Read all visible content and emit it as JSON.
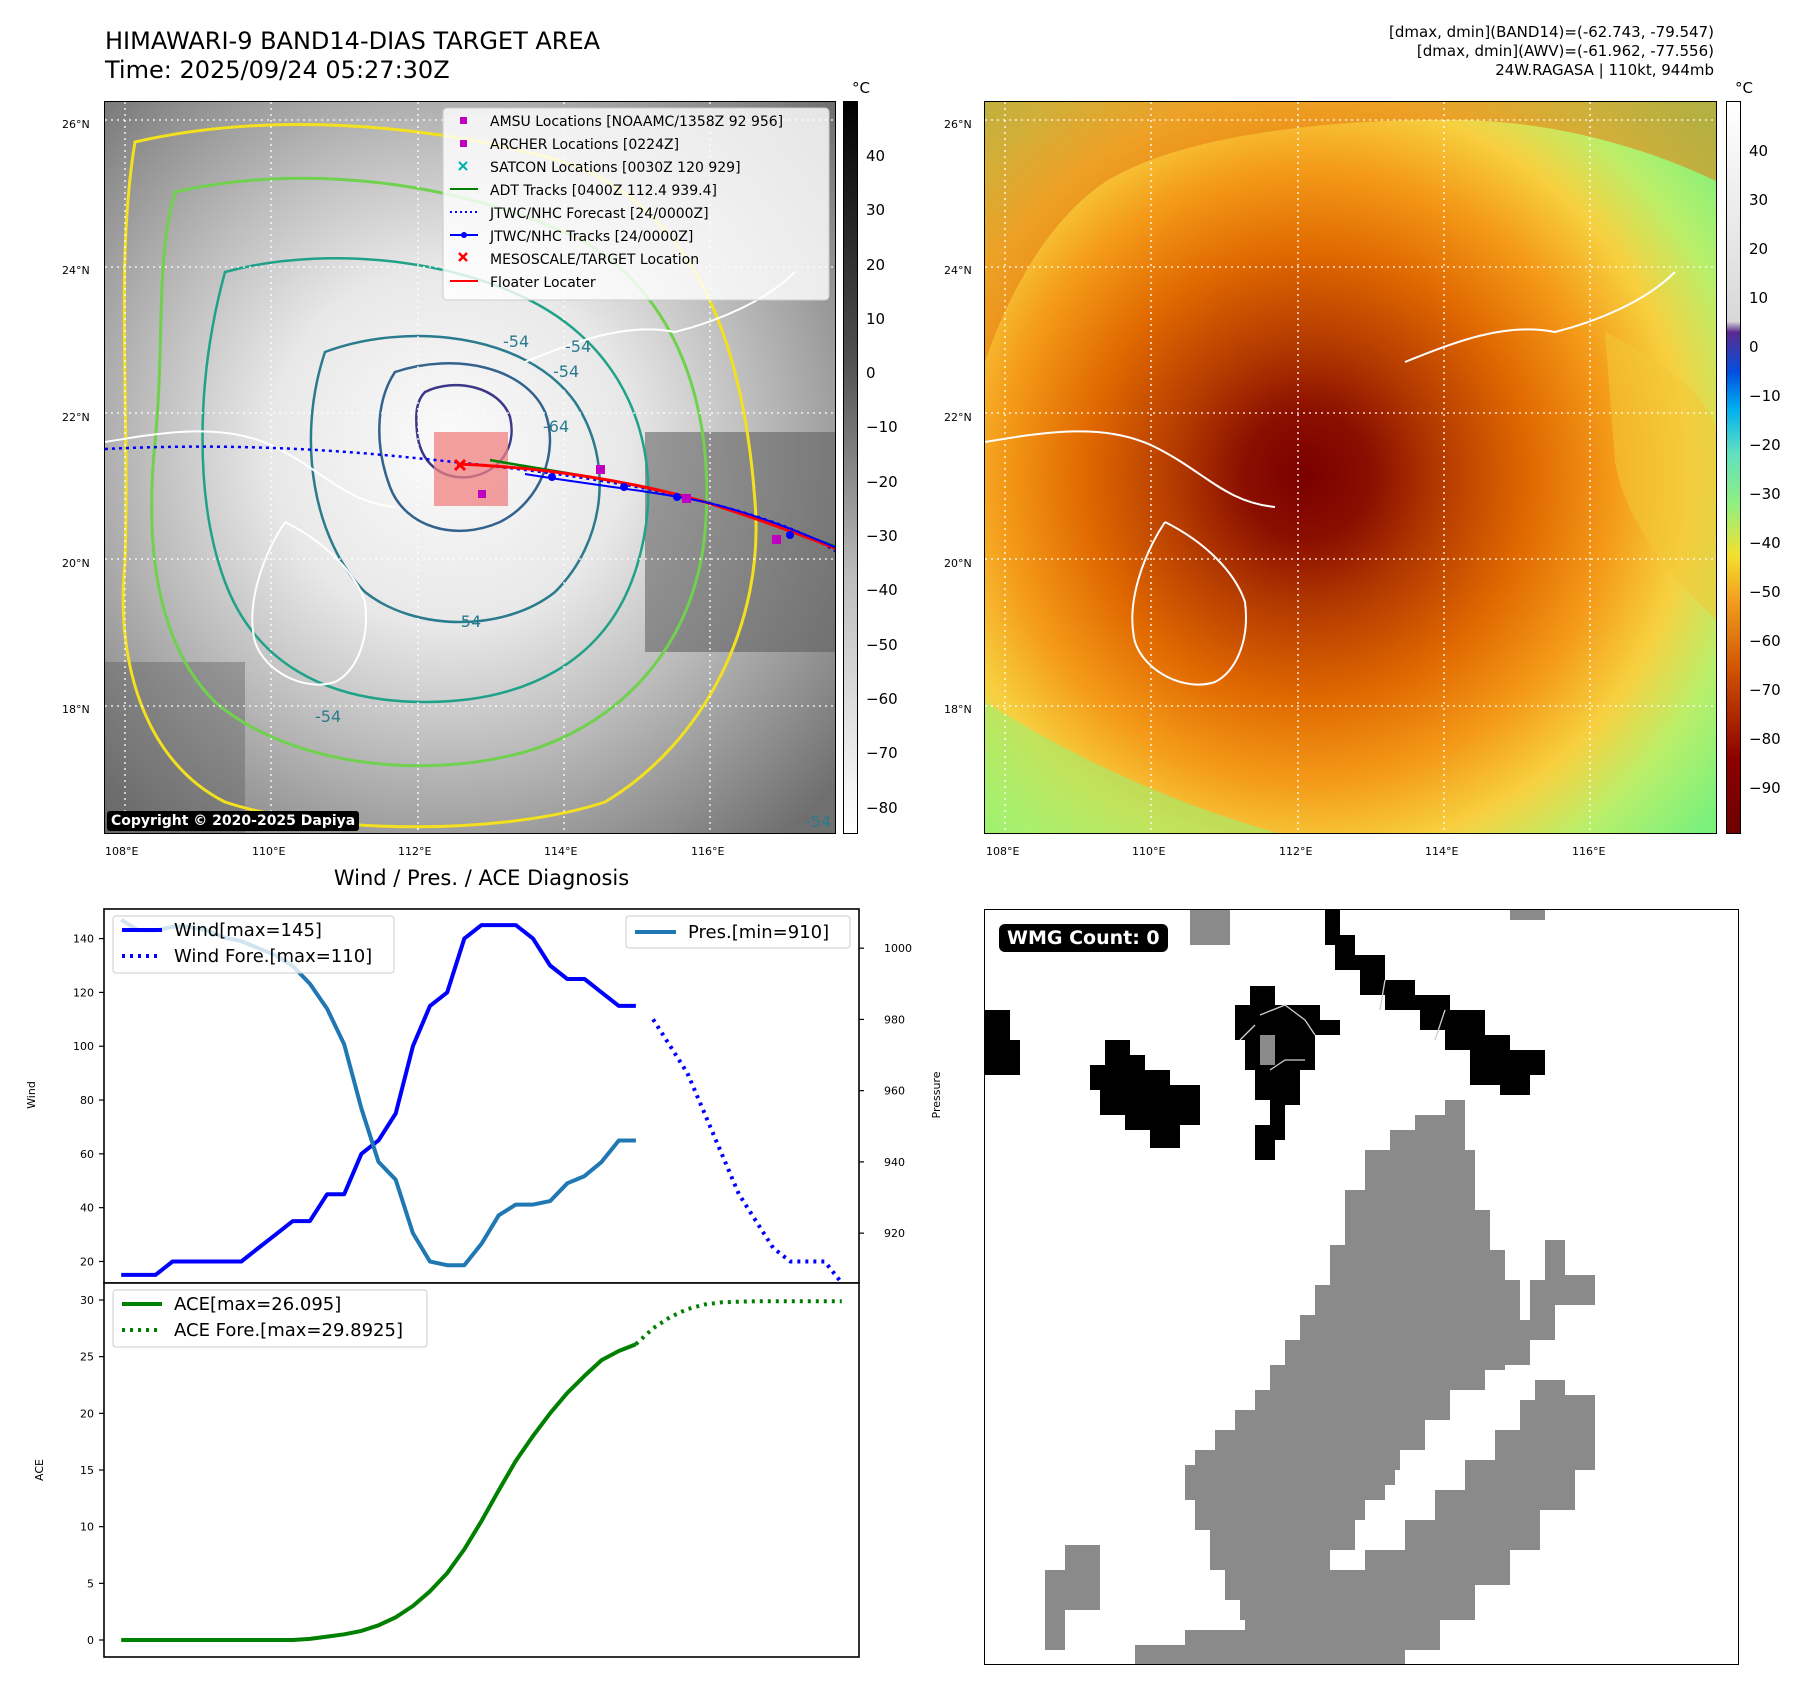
{
  "header": {
    "title_line1": "HIMAWARI-9 BAND14-DIAS TARGET AREA",
    "title_line2": "Time: 2025/09/24 05:27:30Z",
    "info_line1": "[dmax, dmin](BAND14)=(-62.743, -79.547)",
    "info_line2": "[dmax, dmin](AWV)=(-61.962, -77.556)",
    "info_line3": "24W.RAGASA | 110kt, 944mb"
  },
  "map_axes": {
    "lat_labels": [
      "26°N",
      "24°N",
      "22°N",
      "20°N",
      "18°N"
    ],
    "lon_labels": [
      "108°E",
      "110°E",
      "112°E",
      "114°E",
      "116°E"
    ]
  },
  "left_map": {
    "copyright": "Copyright © 2020-2025 Dapiya",
    "contour_labels": [
      "-54",
      "-54",
      "-54",
      "-64",
      "-54",
      "-54",
      "-54"
    ],
    "legend": [
      {
        "label": "AMSU Locations [NOAAMC/1358Z 92 956]",
        "marker": "square",
        "color": "#c000c0"
      },
      {
        "label": "ARCHER Locations [0224Z]",
        "marker": "square",
        "color": "#c000c0"
      },
      {
        "label": "SATCON Locations [0030Z 120 929]",
        "marker": "x",
        "color": "#00b0b0"
      },
      {
        "label": "ADT Tracks [0400Z 112.4 939.4]",
        "marker": "line",
        "color": "#008000"
      },
      {
        "label": "JTWC/NHC Forecast [24/0000Z]",
        "marker": "dotted",
        "color": "#0000ff"
      },
      {
        "label": "JTWC/NHC Tracks [24/0000Z]",
        "marker": "line-dot",
        "color": "#0000ff"
      },
      {
        "label": "MESOSCALE/TARGET Location",
        "marker": "x",
        "color": "#ff0000"
      },
      {
        "label": "Floater Locater",
        "marker": "line",
        "color": "#ff0000"
      }
    ],
    "colorbar": {
      "unit": "°C",
      "ticks": [
        "40",
        "30",
        "20",
        "10",
        "0",
        "−10",
        "−20",
        "−30",
        "−40",
        "−50",
        "−60",
        "−70",
        "−80"
      ],
      "range": [
        -85,
        50
      ]
    }
  },
  "right_map": {
    "colorbar": {
      "unit": "°C",
      "ticks": [
        "40",
        "30",
        "20",
        "10",
        "0",
        "−10",
        "−20",
        "−30",
        "−40",
        "−50",
        "−60",
        "−70",
        "−80",
        "−90"
      ],
      "range": [
        -100,
        50
      ]
    }
  },
  "diagnosis": {
    "title": "Wind / Pres. / ACE Diagnosis",
    "wind_ylabel": "Wind",
    "pres_ylabel": "Pressure",
    "ace_ylabel": "ACE",
    "wind_ticks": [
      "140",
      "120",
      "100",
      "80",
      "60",
      "40",
      "20"
    ],
    "pres_ticks": [
      "1000",
      "980",
      "960",
      "940",
      "920"
    ],
    "ace_ticks": [
      "30",
      "25",
      "20",
      "15",
      "10",
      "5",
      "0"
    ],
    "legend_wind": "Wind[max=145]",
    "legend_wind_fore": "Wind Fore.[max=110]",
    "legend_pres": "Pres.[min=910]",
    "legend_ace": "ACE[max=26.095]",
    "legend_ace_fore": "ACE Fore.[max=29.8925]"
  },
  "wmg": {
    "label": "WMG Count: 0"
  },
  "chart_data": [
    {
      "type": "line",
      "title": "Wind / Pres. / ACE Diagnosis",
      "ylabel": "Wind",
      "ylim": [
        12,
        151
      ],
      "xlim": [
        -1,
        43
      ],
      "series": [
        {
          "name": "Wind[max=145]",
          "color": "#0000ff",
          "style": "solid",
          "x": [
            0,
            1,
            2,
            3,
            4,
            5,
            6,
            7,
            8,
            9,
            10,
            11,
            12,
            13,
            14,
            15,
            16,
            17,
            18,
            19,
            20,
            21,
            22,
            23,
            24,
            25,
            26,
            27,
            28,
            29,
            30
          ],
          "y": [
            15,
            15,
            15,
            20,
            20,
            20,
            20,
            20,
            25,
            30,
            35,
            35,
            45,
            45,
            60,
            65,
            75,
            100,
            115,
            120,
            140,
            145,
            145,
            145,
            140,
            130,
            125,
            125,
            120,
            115,
            115
          ]
        },
        {
          "name": "Wind Fore.[max=110]",
          "color": "#0000ff",
          "style": "dotted",
          "x": [
            31,
            32,
            33,
            34,
            35,
            36,
            37,
            38,
            39,
            40,
            41,
            42
          ],
          "y": [
            110,
            100,
            90,
            75,
            60,
            45,
            35,
            25,
            20,
            20,
            20,
            12
          ]
        }
      ]
    },
    {
      "type": "line",
      "ylabel": "Pressure",
      "ylim": [
        906,
        1011
      ],
      "series": [
        {
          "name": "Pres.[min=910]",
          "color": "#1f77b4",
          "style": "solid",
          "x": [
            0,
            1,
            2,
            3,
            4,
            5,
            6,
            7,
            8,
            9,
            10,
            11,
            12,
            13,
            14,
            15,
            16,
            17,
            18,
            19,
            20,
            21,
            22,
            23,
            24,
            25,
            26,
            27,
            28,
            29,
            30
          ],
          "y": [
            1008,
            1005,
            1005,
            1006,
            1006,
            1005,
            1003,
            1002,
            1000,
            998,
            995,
            990,
            983,
            973,
            955,
            940,
            935,
            920,
            912,
            911,
            911,
            917,
            925,
            928,
            928,
            929,
            934,
            936,
            940,
            946,
            946
          ]
        }
      ]
    },
    {
      "type": "line",
      "ylabel": "ACE",
      "ylim": [
        -1.5,
        31.5
      ],
      "series": [
        {
          "name": "ACE[max=26.095]",
          "color": "#008000",
          "style": "solid",
          "x": [
            0,
            1,
            2,
            3,
            4,
            5,
            6,
            7,
            8,
            9,
            10,
            11,
            12,
            13,
            14,
            15,
            16,
            17,
            18,
            19,
            20,
            21,
            22,
            23,
            24,
            25,
            26,
            27,
            28,
            29,
            30
          ],
          "y": [
            0,
            0,
            0,
            0,
            0,
            0,
            0,
            0,
            0,
            0,
            0,
            0.1,
            0.3,
            0.5,
            0.8,
            1.3,
            2,
            3,
            4.3,
            5.9,
            8,
            10.5,
            13.2,
            15.8,
            18,
            20,
            21.8,
            23.3,
            24.7,
            25.5,
            26.1
          ]
        },
        {
          "name": "ACE Fore.[max=29.8925]",
          "color": "#008000",
          "style": "dotted",
          "x": [
            30,
            31,
            32,
            33,
            34,
            35,
            36,
            37,
            38,
            39,
            40,
            41,
            42
          ],
          "y": [
            26.1,
            27.5,
            28.5,
            29.2,
            29.6,
            29.8,
            29.85,
            29.89,
            29.89,
            29.89,
            29.89,
            29.89,
            29.89
          ]
        }
      ]
    }
  ]
}
